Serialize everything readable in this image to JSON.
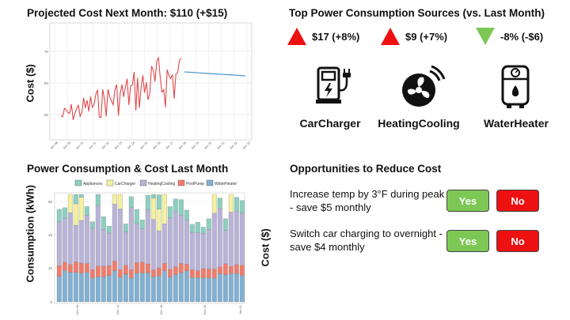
{
  "projection": {
    "title": "Projected Cost Next Month: $110 (+$15)",
    "ylabel": "Cost ($)",
    "yticks": [
      "50",
      "60",
      "70"
    ],
    "xticks": [
      "Jan 08",
      "Jan 09",
      "Jan 10",
      "Jan 11",
      "Jan 12",
      "Jan 13",
      "Jan 14",
      "Jan 15",
      "Jan 16",
      "Jan 17",
      "Jan 18",
      "Jan 19",
      "Jan 20",
      "Jan 21",
      "Jan 22",
      "Jan 23"
    ]
  },
  "sources": {
    "title": "Top Power Consumption Sources (vs. Last Month)",
    "items": [
      {
        "name": "CarCharger",
        "change": "$17 (+8%)",
        "direction": "up",
        "color": "#ee1111",
        "icon": "car-charger-icon"
      },
      {
        "name": "HeatingCooling",
        "change": "$9 (+7%)",
        "direction": "up",
        "color": "#ee1111",
        "icon": "fan-icon"
      },
      {
        "name": "WaterHeater",
        "change": "-8% (-$6)",
        "direction": "down",
        "color": "#7dc855",
        "icon": "water-heater-icon"
      }
    ]
  },
  "consumption": {
    "title": "Power Consumption & Cost Last Month",
    "ylabel_left": "Consumption (kWh)",
    "ylabel_right": "Cost ($)",
    "yticks": [
      "0",
      "20",
      "40",
      "60"
    ],
    "xticks": [
      "Dec 04",
      "Dec 11",
      "Dec 18",
      "Dec 25",
      "Jan 01"
    ],
    "legend": [
      "Appliances",
      "CarCharger",
      "HeatingCooling",
      "PoolPump",
      "WaterHeater"
    ],
    "colors": {
      "Appliances": "#8ccfc0",
      "CarCharger": "#f3f0a0",
      "HeatingCooling": "#b9b3d8",
      "PoolPump": "#f07c6c",
      "WaterHeater": "#82b1d2"
    }
  },
  "opportunities": {
    "title": "Opportunities to Reduce Cost",
    "items": [
      {
        "text": "Increase temp by 3°F during peak - save $5 monthly",
        "yes": "Yes",
        "no": "No"
      },
      {
        "text": "Switch car charging to overnight - save $4 monthly",
        "yes": "Yes",
        "no": "No"
      }
    ]
  }
}
